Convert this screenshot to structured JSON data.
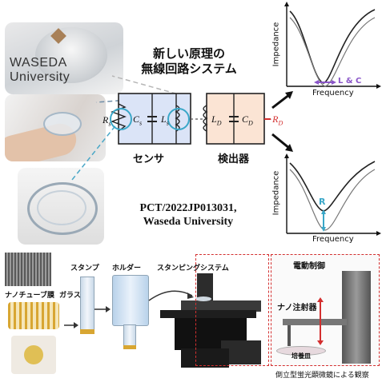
{
  "title": [
    "新しい原理の",
    "無線回路システム"
  ],
  "watermark": "WASEDA University",
  "circuit": {
    "sensor_label": "センサ",
    "detector_label": "検出器",
    "rs": "R",
    "rs_sub": "s",
    "cs": "C",
    "cs_sub": "s",
    "ls": "L",
    "ls_sub": "s",
    "ld": "L",
    "ld_sub": "D",
    "cd": "C",
    "cd_sub": "D",
    "rd": "−R",
    "rd_sub": "D"
  },
  "plots": {
    "top": {
      "ylabel": "Impedance",
      "xlabel": "Frequency",
      "annotation": "L & C"
    },
    "bottom": {
      "ylabel": "Impedance",
      "xlabel": "Frequency",
      "annotation": "R"
    }
  },
  "patent": [
    "PCT/2022JP013031,",
    "Waseda University"
  ],
  "process": {
    "nanotube": "ナノチューブ膜",
    "stamp": "スタンプ",
    "glass": "ガラス管",
    "holder": "ホルダー",
    "system": "スタンピングシステム",
    "motor": "電動制御",
    "injector": "ナノ注射器",
    "dish": "培養皿",
    "caption": "倒立型蛍光顕微鏡による観察"
  },
  "colors": {
    "accent": "#3aa7c8",
    "red": "#d32f2f",
    "box": "#dbe4f7",
    "detbox": "#fbe4d4"
  }
}
